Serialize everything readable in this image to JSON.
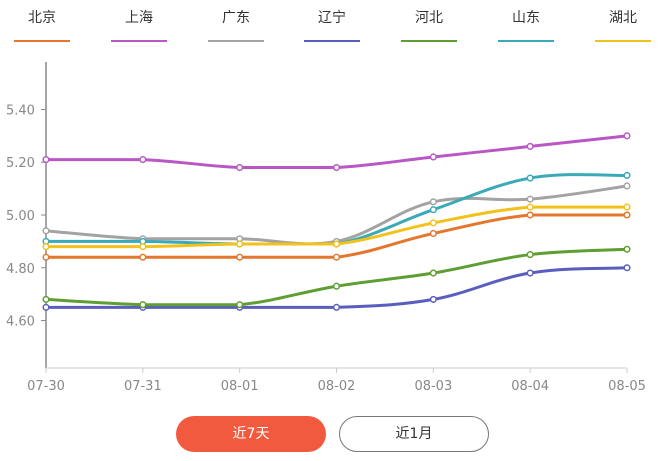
{
  "chart_data": {
    "type": "line",
    "categories": [
      "07-30",
      "07-31",
      "08-01",
      "08-02",
      "08-03",
      "08-04",
      "08-05"
    ],
    "ylim": [
      4.42,
      5.58
    ],
    "yticks": [
      "4.60",
      "4.80",
      "5.00",
      "5.20",
      "5.40"
    ],
    "ytick_values": [
      4.6,
      4.8,
      5.0,
      5.2,
      5.4
    ],
    "grid": false,
    "legend_position": "top",
    "series": [
      {
        "name": "北京",
        "color": "#e4762d",
        "values": [
          4.84,
          4.84,
          4.84,
          4.84,
          4.93,
          5.0,
          5.0
        ]
      },
      {
        "name": "上海",
        "color": "#b957c4",
        "values": [
          5.21,
          5.21,
          5.18,
          5.18,
          5.22,
          5.26,
          5.3
        ]
      },
      {
        "name": "广东",
        "color": "#a3a3a3",
        "values": [
          4.94,
          4.91,
          4.91,
          4.9,
          5.05,
          5.06,
          5.11
        ]
      },
      {
        "name": "辽宁",
        "color": "#5a5fbf",
        "values": [
          4.65,
          4.65,
          4.65,
          4.65,
          4.68,
          4.78,
          4.8
        ]
      },
      {
        "name": "河北",
        "color": "#5e9e32",
        "values": [
          4.68,
          4.66,
          4.66,
          4.73,
          4.78,
          4.85,
          4.87
        ]
      },
      {
        "name": "山东",
        "color": "#3aa9b8",
        "values": [
          4.9,
          4.9,
          4.89,
          4.89,
          5.02,
          5.14,
          5.15
        ]
      },
      {
        "name": "湖北",
        "color": "#f2c21b",
        "values": [
          4.88,
          4.88,
          4.89,
          4.89,
          4.97,
          5.03,
          5.03
        ]
      }
    ]
  },
  "buttons": {
    "last_7_days": "近7天",
    "last_1_month": "近1月"
  }
}
